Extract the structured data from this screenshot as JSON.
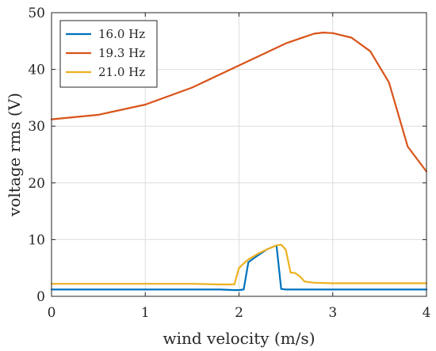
{
  "chart_data": {
    "type": "line",
    "title": "",
    "xlabel": "wind velocity (m/s)",
    "ylabel": "voltage rms (V)",
    "xlim": [
      0,
      4
    ],
    "ylim": [
      0,
      50
    ],
    "xticks": [
      0,
      1,
      2,
      3,
      4
    ],
    "yticks": [
      0,
      10,
      20,
      30,
      40,
      50
    ],
    "x_tick_labels": [
      "0",
      "1",
      "2",
      "3",
      "4"
    ],
    "y_tick_labels": [
      "0",
      "10",
      "20",
      "30",
      "40",
      "50"
    ],
    "grid": true,
    "legend_position": "top-left",
    "series": [
      {
        "name": "16.0 Hz",
        "color": "#0072BD",
        "x": [
          0,
          0.5,
          1.0,
          1.5,
          1.8,
          1.95,
          2.0,
          2.05,
          2.1,
          2.2,
          2.3,
          2.4,
          2.45,
          2.5,
          2.6,
          3.0,
          3.5,
          4.0
        ],
        "y": [
          1.2,
          1.2,
          1.2,
          1.2,
          1.2,
          1.1,
          1.1,
          1.2,
          6.0,
          7.2,
          8.3,
          9.0,
          1.3,
          1.2,
          1.2,
          1.2,
          1.2,
          1.2
        ]
      },
      {
        "name": "19.3 Hz",
        "color": "#D95319",
        "x": [
          0,
          0.5,
          1.0,
          1.5,
          2.0,
          2.5,
          2.8,
          2.9,
          3.0,
          3.2,
          3.4,
          3.6,
          3.8,
          4.0
        ],
        "y": [
          31.2,
          32.0,
          33.8,
          36.8,
          40.7,
          44.6,
          46.3,
          46.5,
          46.4,
          45.6,
          43.2,
          37.7,
          26.4,
          22.0
        ]
      },
      {
        "name": "21.0 Hz",
        "color": "#EDB120",
        "x": [
          0,
          0.5,
          1.0,
          1.5,
          1.8,
          1.95,
          2.0,
          2.05,
          2.1,
          2.2,
          2.3,
          2.4,
          2.45,
          2.5,
          2.55,
          2.6,
          2.65,
          2.7,
          2.8,
          3.0,
          3.5,
          4.0
        ],
        "y": [
          2.2,
          2.2,
          2.2,
          2.2,
          2.1,
          2.1,
          5.0,
          5.8,
          6.5,
          7.5,
          8.3,
          9.0,
          9.1,
          8.2,
          4.2,
          4.1,
          3.5,
          2.6,
          2.4,
          2.3,
          2.3,
          2.3
        ]
      }
    ]
  }
}
